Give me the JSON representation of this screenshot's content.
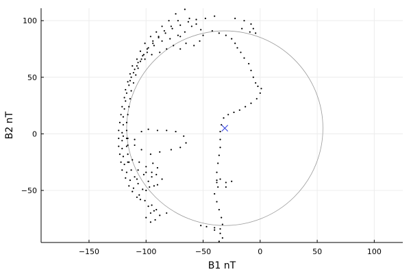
{
  "chart_data": {
    "type": "scatter",
    "title": "",
    "xlabel": "B1 nT",
    "ylabel": "B2 nT",
    "xlim": [
      -192,
      125
    ],
    "ylim": [
      -96,
      111
    ],
    "x_ticks": [
      -150,
      -100,
      -50,
      0,
      50,
      100
    ],
    "y_ticks": [
      -50,
      0,
      50,
      100
    ],
    "x_tick_labels": [
      "−150",
      "−100",
      "−50",
      "0",
      "50",
      "100"
    ],
    "y_tick_labels": [
      "−50",
      "0",
      "50",
      "100"
    ],
    "grid": true,
    "legend": "none",
    "colors": {
      "trace": "#000000",
      "circle": "#9a9a9a",
      "marker": "#3b48e0",
      "grid": "#ececec",
      "axis": "#000000"
    },
    "series": [
      {
        "kind": "circle",
        "center": [
          -31,
          5
        ],
        "radius": 86
      },
      {
        "kind": "marker",
        "symbol": "x",
        "points": [
          [
            -31,
            5
          ]
        ]
      },
      {
        "kind": "trace",
        "points": [
          [
            -40,
            104
          ],
          [
            -48,
            102
          ],
          [
            -56,
            101
          ],
          [
            -63,
            99
          ],
          [
            -70,
            96
          ],
          [
            -77,
            93
          ],
          [
            -83,
            89
          ],
          [
            -89,
            85
          ],
          [
            -94,
            80
          ],
          [
            -99,
            75
          ],
          [
            -103,
            69
          ],
          [
            -107,
            63
          ],
          [
            -110,
            57
          ],
          [
            -113,
            50
          ],
          [
            -115,
            43
          ],
          [
            -117,
            36
          ],
          [
            -118,
            29
          ],
          [
            -119,
            22
          ],
          [
            -120,
            15
          ],
          [
            -120,
            8
          ],
          [
            -121,
            1
          ],
          [
            -121,
            -6
          ],
          [
            -121,
            -13
          ],
          [
            -120,
            -20
          ],
          [
            -119,
            -27
          ],
          [
            -117,
            -34
          ],
          [
            -114,
            -41
          ],
          [
            -111,
            -48
          ],
          [
            -106,
            -54
          ],
          [
            -101,
            -59
          ],
          [
            -95,
            -63
          ],
          [
            -91,
            -67
          ],
          [
            -66,
            110
          ],
          [
            -74,
            106
          ],
          [
            -80,
            100
          ],
          [
            -86,
            95
          ],
          [
            -91,
            90
          ],
          [
            -96,
            86
          ],
          [
            -101,
            80
          ],
          [
            -105,
            73
          ],
          [
            -108,
            66
          ],
          [
            -112,
            60
          ],
          [
            -114,
            53
          ],
          [
            -116,
            46
          ],
          [
            -118,
            39
          ],
          [
            -119,
            32
          ],
          [
            -121,
            24
          ],
          [
            -122,
            17
          ],
          [
            -123,
            10
          ],
          [
            -124,
            3
          ],
          [
            -124,
            -4
          ],
          [
            -124,
            -11
          ],
          [
            -123,
            -18
          ],
          [
            -122,
            -25
          ],
          [
            -121,
            -32
          ],
          [
            -118,
            -39
          ],
          [
            -115,
            -46
          ],
          [
            -112,
            -51
          ],
          [
            -108,
            -56
          ],
          [
            -72,
            100
          ],
          [
            -78,
            95
          ],
          [
            -84,
            91
          ],
          [
            -89,
            86
          ],
          [
            -94,
            82
          ],
          [
            -98,
            76
          ],
          [
            -102,
            70
          ],
          [
            -105,
            64
          ],
          [
            -107,
            58
          ],
          [
            -109,
            52
          ],
          [
            -111,
            45
          ],
          [
            -113,
            38
          ],
          [
            -114,
            31
          ],
          [
            -115,
            24
          ],
          [
            -116,
            17
          ],
          [
            -117,
            10
          ],
          [
            -117,
            3
          ],
          [
            -117,
            -4
          ],
          [
            -117,
            -11
          ],
          [
            -116,
            -18
          ],
          [
            -115,
            -25
          ],
          [
            -113,
            -32
          ],
          [
            -110,
            -38
          ],
          [
            -107,
            -44
          ],
          [
            -103,
            -49
          ],
          [
            -60,
            95
          ],
          [
            -66,
            90
          ],
          [
            -72,
            87
          ],
          [
            -79,
            84
          ],
          [
            -86,
            82
          ],
          [
            -93,
            78
          ],
          [
            -99,
            72
          ],
          [
            -104,
            66
          ],
          [
            -108,
            60
          ],
          [
            -111,
            54
          ],
          [
            -114,
            47
          ],
          [
            -70,
            75
          ],
          [
            -76,
            78
          ],
          [
            -82,
            75
          ],
          [
            -88,
            72
          ],
          [
            -95,
            70
          ],
          [
            -101,
            66
          ],
          [
            -120,
            -20
          ],
          [
            -116,
            -25
          ],
          [
            -112,
            -23
          ],
          [
            -106,
            -25
          ],
          [
            -100,
            -29
          ],
          [
            -94,
            -26
          ],
          [
            -90,
            -30
          ],
          [
            -95,
            -34
          ],
          [
            -102,
            -36
          ],
          [
            -108,
            -40
          ],
          [
            -98,
            -42
          ],
          [
            -93,
            -46
          ],
          [
            -100,
            -50
          ],
          [
            -105,
            -58
          ],
          [
            -98,
            -64
          ],
          [
            -93,
            -68
          ],
          [
            -88,
            -72
          ],
          [
            -82,
            -70
          ],
          [
            -96,
            -70
          ],
          [
            -100,
            -74
          ],
          [
            -96,
            -78
          ],
          [
            -92,
            -76
          ],
          [
            -120,
            -2
          ],
          [
            -116,
            -4
          ],
          [
            -110,
            -5
          ],
          [
            -104,
            2
          ],
          [
            -98,
            4
          ],
          [
            -90,
            3
          ],
          [
            -82,
            3
          ],
          [
            -74,
            2
          ],
          [
            -67,
            -2
          ],
          [
            -65,
            -8
          ],
          [
            -70,
            -12
          ],
          [
            -78,
            -14
          ],
          [
            -88,
            -16
          ],
          [
            -96,
            -18
          ],
          [
            -104,
            -14
          ],
          [
            -110,
            -10
          ],
          [
            -116,
            -10
          ],
          [
            -107,
            -32
          ],
          [
            -100,
            -34
          ],
          [
            -95,
            -38
          ],
          [
            -91,
            -36
          ],
          [
            -86,
            -40
          ],
          [
            -90,
            -45
          ],
          [
            -97,
            -47
          ],
          [
            -62,
            102
          ],
          [
            -56,
            97
          ],
          [
            -52,
            92
          ],
          [
            -50,
            87
          ],
          [
            -53,
            82
          ],
          [
            -58,
            78
          ],
          [
            -65,
            80
          ],
          [
            -70,
            86
          ],
          [
            -42,
            91
          ],
          [
            -36,
            89
          ],
          [
            -30,
            87
          ],
          [
            -25,
            84
          ],
          [
            -22,
            80
          ],
          [
            -20,
            76
          ],
          [
            -17,
            72
          ],
          [
            -14,
            67
          ],
          [
            -10,
            62
          ],
          [
            -8,
            56
          ],
          [
            -6,
            50
          ],
          [
            -4,
            45
          ],
          [
            -2,
            42
          ],
          [
            1,
            40
          ],
          [
            0,
            36
          ],
          [
            -3,
            31
          ],
          [
            -8,
            27
          ],
          [
            -13,
            24
          ],
          [
            -18,
            21
          ],
          [
            -23,
            19
          ],
          [
            -28,
            17
          ],
          [
            -32,
            14
          ],
          [
            -34,
            8
          ],
          [
            -35,
            2
          ],
          [
            -35,
            -5
          ],
          [
            -35,
            -12
          ],
          [
            -36,
            -19
          ],
          [
            -37,
            -26
          ],
          [
            -38,
            -34
          ],
          [
            -38,
            -41
          ],
          [
            -37,
            -47
          ],
          [
            -40,
            -53
          ],
          [
            -38,
            -60
          ],
          [
            -36,
            -67
          ],
          [
            -34,
            -74
          ],
          [
            -33,
            -80
          ],
          [
            -35,
            -84
          ],
          [
            -40,
            -83
          ],
          [
            -47,
            -82
          ],
          [
            -52,
            -81
          ],
          [
            -40,
            -85
          ],
          [
            -35,
            -88
          ],
          [
            -33,
            -92
          ],
          [
            -36,
            -95
          ],
          [
            -38,
            -43
          ],
          [
            -35,
            -40
          ],
          [
            -30,
            -43
          ],
          [
            -25,
            -42
          ],
          [
            -30,
            -47
          ],
          [
            -22,
            102
          ],
          [
            -14,
            100
          ],
          [
            -8,
            97
          ],
          [
            -6,
            93
          ],
          [
            -4,
            89
          ],
          [
            -9,
            90
          ],
          [
            -16,
            93
          ]
        ]
      }
    ]
  }
}
